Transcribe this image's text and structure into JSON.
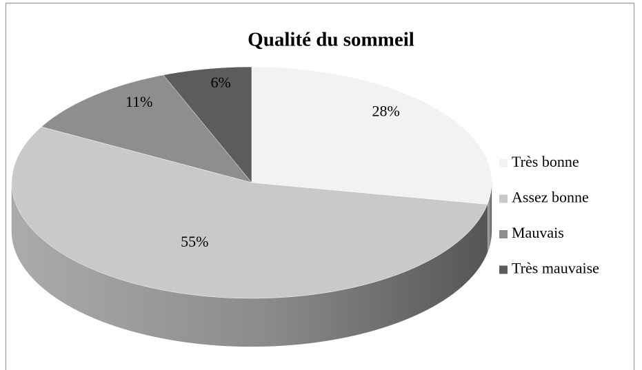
{
  "chart_data": {
    "type": "pie",
    "title": "Qualité du sommeil",
    "categories": [
      "Très bonne",
      "Assez bonne",
      "Mauvais",
      "Très mauvaise"
    ],
    "values": [
      28,
      55,
      11,
      6
    ],
    "value_labels": [
      "28%",
      "55%",
      "11%",
      "6%"
    ],
    "colors": [
      "#f2f2f2",
      "#c9c9c9",
      "#8e8e8e",
      "#5c5c5c"
    ],
    "legend": "right"
  }
}
